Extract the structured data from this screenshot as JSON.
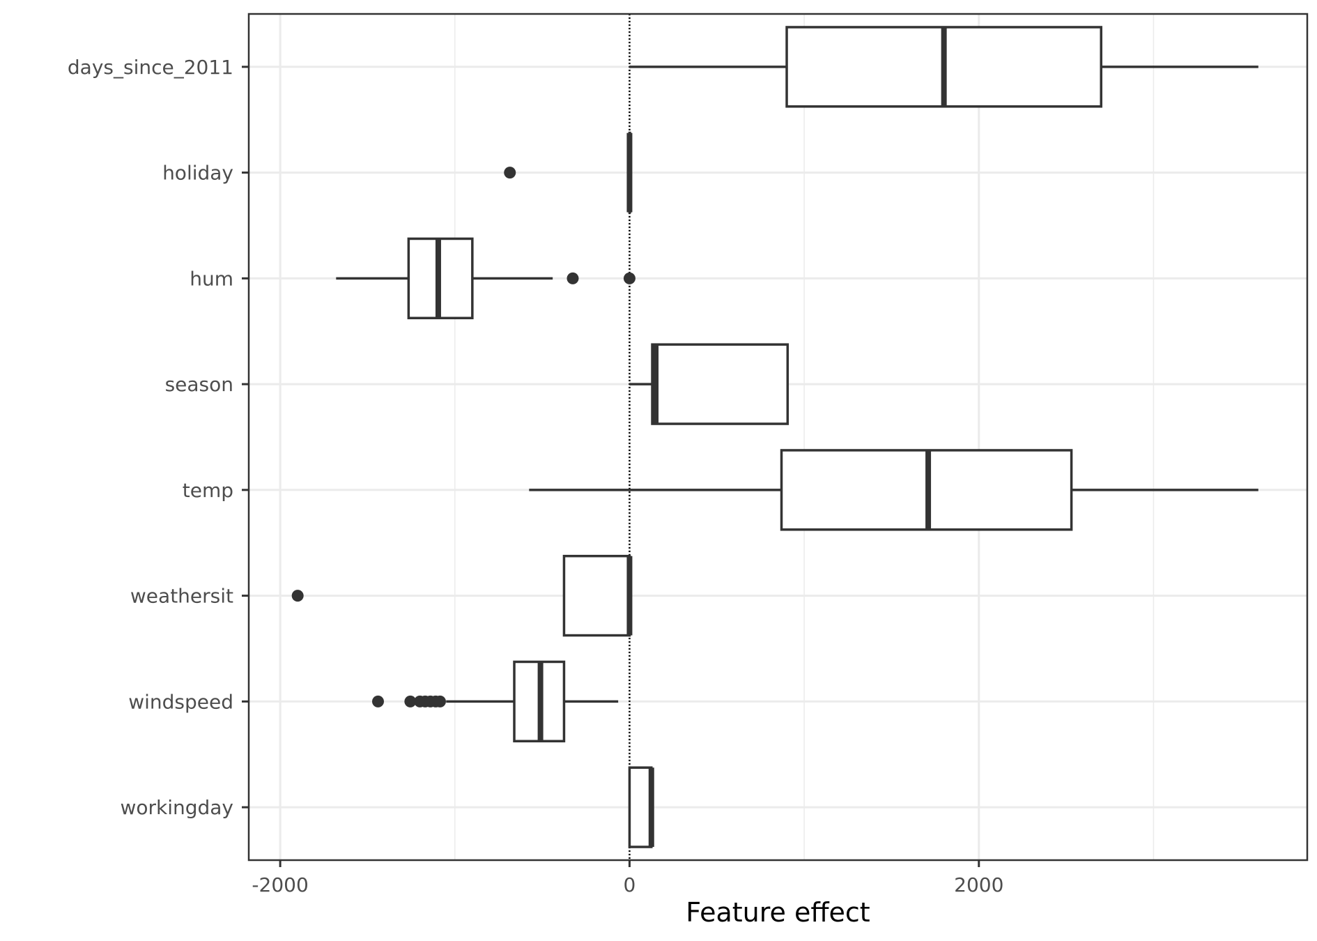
{
  "chart_data": {
    "type": "boxplot",
    "orientation": "horizontal",
    "title": "",
    "xlabel": "Feature effect",
    "ylabel": "",
    "xlim": [
      -2180,
      3880
    ],
    "x_ticks": [
      -2000,
      0,
      2000
    ],
    "x_tick_labels": [
      "-2000",
      "0",
      "2000"
    ],
    "x_minor_ticks": [
      -1000,
      1000,
      3000
    ],
    "reference_line": {
      "x": 0,
      "style": "dotted"
    },
    "grid": true,
    "colors": {
      "box_stroke": "#333333",
      "grid": "#ebebeb",
      "tick_text": "#4d4d4d",
      "panel_border": "#333333",
      "background": "#ffffff"
    },
    "categories": [
      "workingday",
      "windspeed",
      "weathersit",
      "temp",
      "season",
      "hum",
      "holiday",
      "days_since_2011"
    ],
    "boxes": [
      {
        "feature": "workingday",
        "whisker_low": 0,
        "q1": 0,
        "median": 125,
        "q3": 125,
        "whisker_high": 125,
        "outliers": []
      },
      {
        "feature": "windspeed",
        "whisker_low": -1050,
        "q1": -660,
        "median": -510,
        "q3": -375,
        "whisker_high": -65,
        "outliers": [
          -1440,
          -1255,
          -1200,
          -1170,
          -1140,
          -1110,
          -1085
        ]
      },
      {
        "feature": "weathersit",
        "whisker_low": -375,
        "q1": -375,
        "median": 0,
        "q3": 0,
        "whisker_high": 0,
        "outliers": [
          -1900
        ]
      },
      {
        "feature": "temp",
        "whisker_low": -575,
        "q1": 870,
        "median": 1710,
        "q3": 2530,
        "whisker_high": 3600,
        "outliers": []
      },
      {
        "feature": "season",
        "whisker_low": 0,
        "q1": 130,
        "median": 150,
        "q3": 905,
        "whisker_high": 905,
        "outliers": []
      },
      {
        "feature": "hum",
        "whisker_low": -1680,
        "q1": -1265,
        "median": -1095,
        "q3": -900,
        "whisker_high": -440,
        "outliers": [
          -325,
          0
        ]
      },
      {
        "feature": "holiday",
        "whisker_low": 0,
        "q1": 0,
        "median": 0,
        "q3": 0,
        "whisker_high": 0,
        "outliers": [
          -685
        ]
      },
      {
        "feature": "days_since_2011",
        "whisker_low": 0,
        "q1": 900,
        "median": 1800,
        "q3": 2700,
        "whisker_high": 3600,
        "outliers": []
      }
    ]
  }
}
